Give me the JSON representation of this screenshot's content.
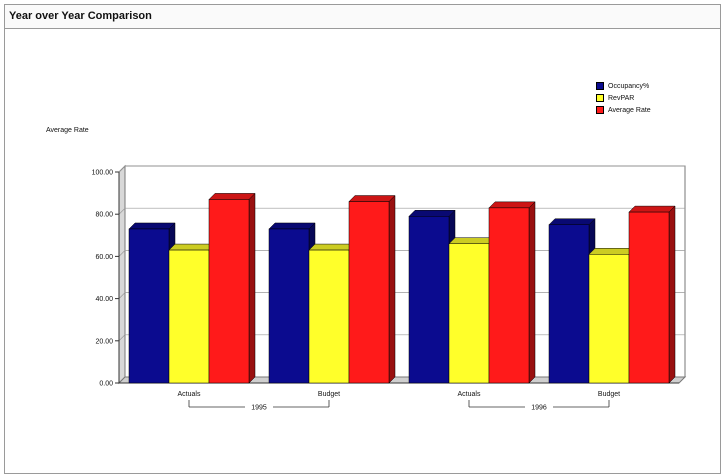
{
  "window": {
    "title": "Year over Year Comparison"
  },
  "chart_data": {
    "type": "bar",
    "title": "Year over Year Comparison",
    "ylabel": "Average Rate",
    "xlabel": "",
    "ylim": [
      0,
      100
    ],
    "yticks": [
      "0.00",
      "20.00",
      "40.00",
      "60.00",
      "80.00",
      "100.00"
    ],
    "grid": true,
    "legend_position": "top-right",
    "categories": [
      "Actuals",
      "Budget",
      "Actuals",
      "Budget"
    ],
    "groups": [
      {
        "label": "1995",
        "categories": [
          0,
          1
        ]
      },
      {
        "label": "1996",
        "categories": [
          2,
          3
        ]
      }
    ],
    "series": [
      {
        "name": "Occupancy%",
        "color": "#0b0b8f",
        "values": [
          73,
          73,
          79,
          75
        ]
      },
      {
        "name": "RevPAR",
        "color": "#ffff2a",
        "values": [
          63,
          63,
          66,
          61
        ]
      },
      {
        "name": "Average Rate",
        "color": "#ff1a1a",
        "values": [
          87,
          86,
          83,
          81
        ]
      }
    ]
  }
}
